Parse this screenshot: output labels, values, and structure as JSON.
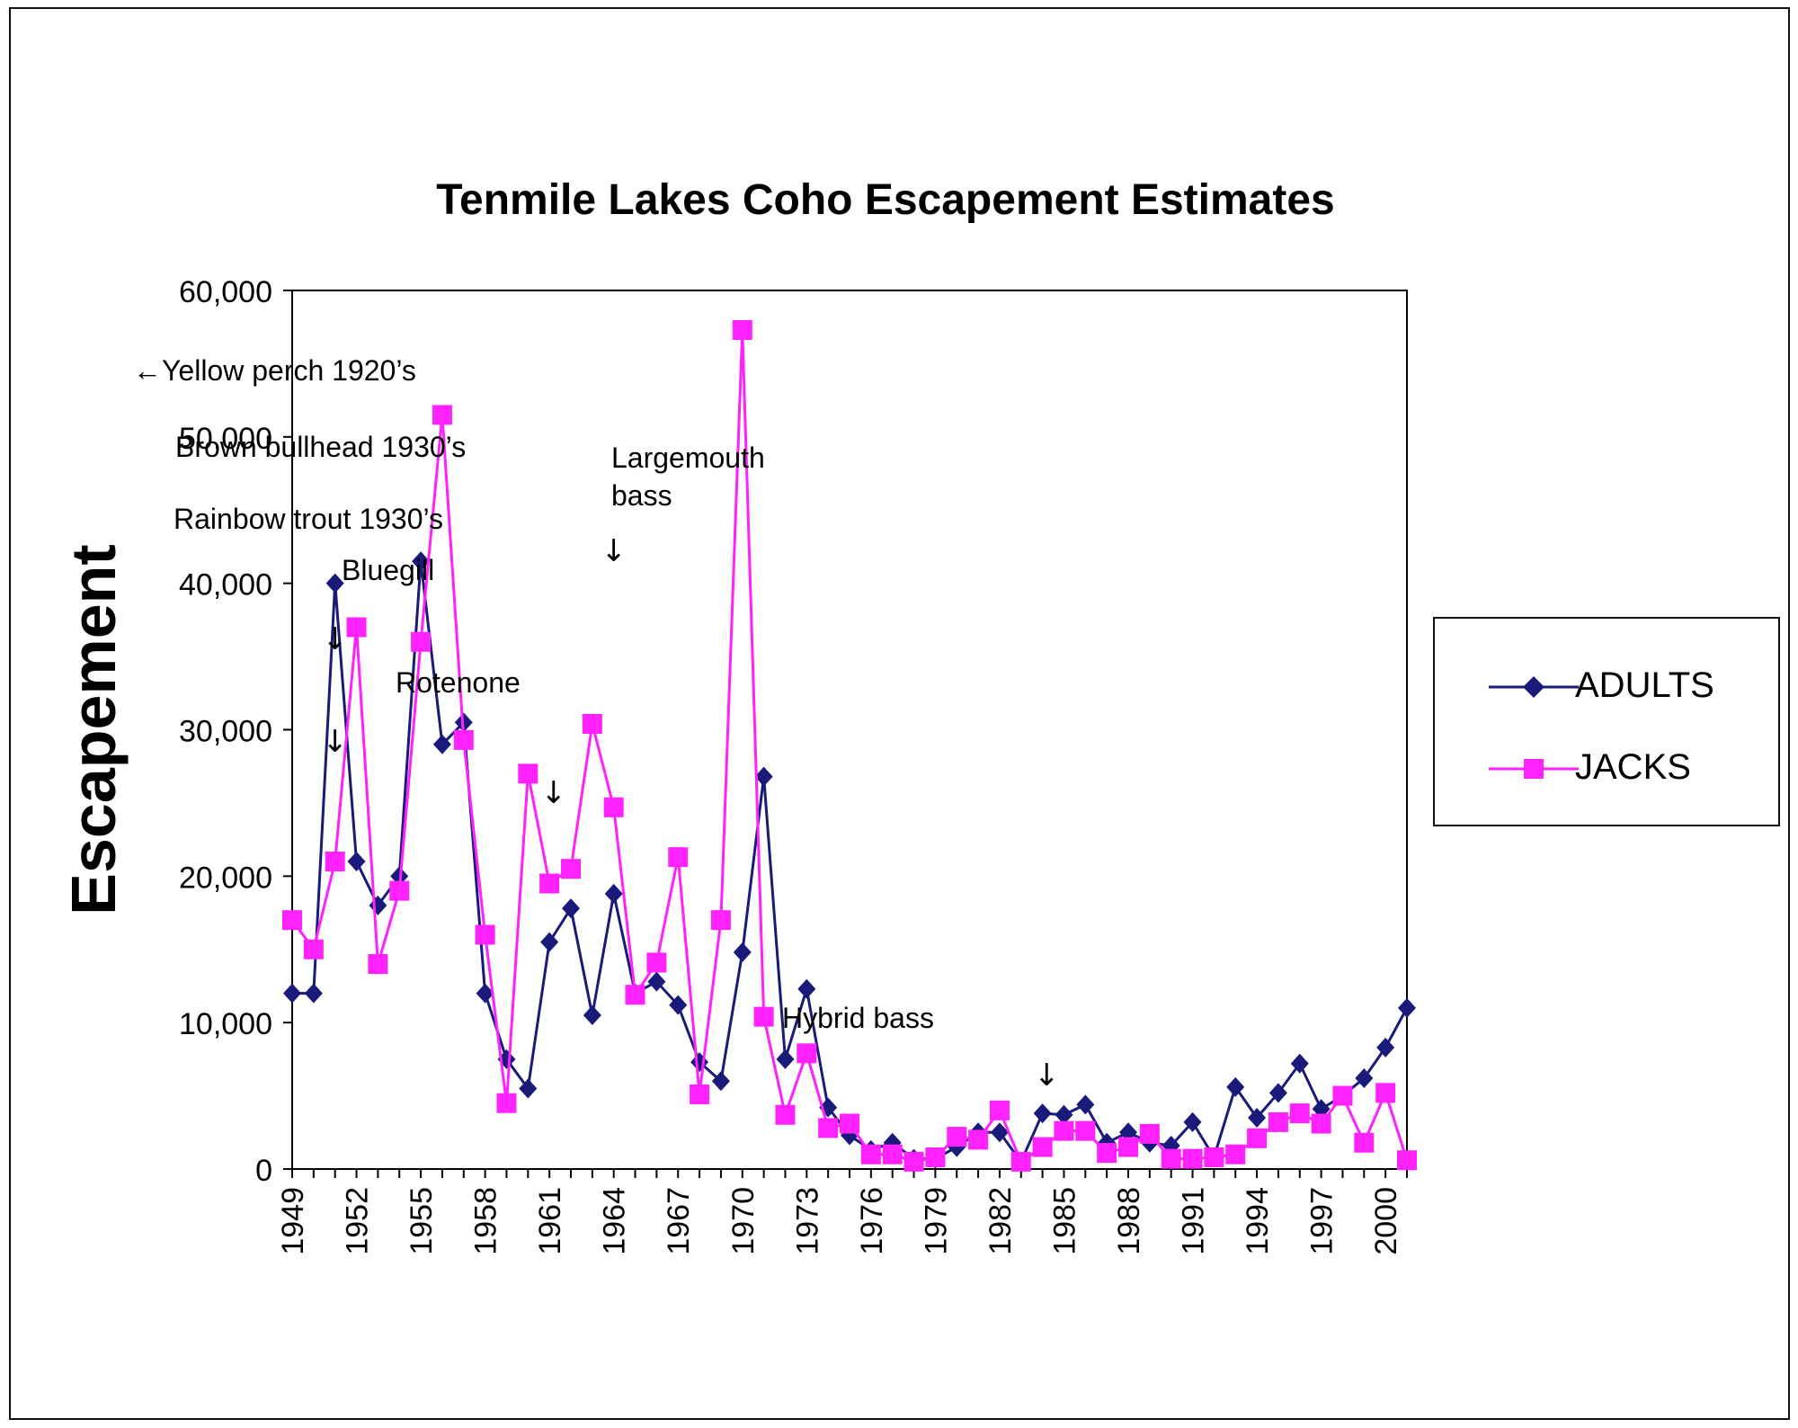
{
  "chart_data": {
    "type": "line",
    "title": "Tenmile Lakes Coho Escapement Estimates",
    "ylabel": "Escapement",
    "xlabel": "",
    "ylim": [
      0,
      60000
    ],
    "yticks": [
      0,
      10000,
      20000,
      30000,
      40000,
      50000,
      60000
    ],
    "ytick_labels": [
      "0",
      "10,000",
      "20,000",
      "30,000",
      "40,000",
      "50,000",
      "60,000"
    ],
    "xlim": [
      1949,
      2001
    ],
    "xtick_labels": [
      "1949",
      "1952",
      "1955",
      "1958",
      "1961",
      "1964",
      "1967",
      "1970",
      "1973",
      "1976",
      "1979",
      "1982",
      "1985",
      "1988",
      "1991",
      "1994",
      "1997",
      "2000"
    ],
    "x": [
      1949,
      1950,
      1951,
      1952,
      1953,
      1954,
      1955,
      1956,
      1957,
      1958,
      1959,
      1960,
      1961,
      1962,
      1963,
      1964,
      1965,
      1966,
      1967,
      1968,
      1969,
      1970,
      1971,
      1972,
      1973,
      1974,
      1975,
      1976,
      1977,
      1978,
      1979,
      1980,
      1981,
      1982,
      1983,
      1984,
      1985,
      1986,
      1987,
      1988,
      1989,
      1990,
      1991,
      1992,
      1993,
      1994,
      1995,
      1996,
      1997,
      1998,
      1999,
      2000,
      2001
    ],
    "series": [
      {
        "name": "ADULTS",
        "color": "#1a1a7a",
        "marker": "diamond",
        "values": [
          12000,
          12000,
          40000,
          21000,
          18000,
          20000,
          41500,
          29000,
          30500,
          12000,
          7500,
          5500,
          15500,
          17800,
          10500,
          18800,
          12000,
          12800,
          11200,
          7300,
          6000,
          14800,
          26800,
          7500,
          12300,
          4200,
          2300,
          1300,
          1800,
          700,
          700,
          1500,
          2500,
          2500,
          500,
          3800,
          3700,
          4400,
          1800,
          2500,
          1800,
          1600,
          3200,
          800,
          5600,
          3500,
          5200,
          7200,
          4100,
          5000,
          6200,
          8300,
          11000
        ]
      },
      {
        "name": "JACKS",
        "color": "#ff22ff",
        "marker": "square",
        "values": [
          17000,
          15000,
          21000,
          37000,
          14000,
          19000,
          36000,
          51500,
          29300,
          16000,
          4500,
          27000,
          19500,
          20500,
          30400,
          24700,
          11900,
          14100,
          21300,
          5100,
          17000,
          57300,
          10400,
          3700,
          7900,
          2800,
          3100,
          1000,
          1000,
          500,
          800,
          2200,
          2000,
          4000,
          500,
          1500,
          2600,
          2600,
          1100,
          1500,
          2400,
          700,
          700,
          800,
          1000,
          2100,
          3200,
          3800,
          3100,
          5000,
          1800,
          5200,
          600
        ]
      }
    ],
    "legend": {
      "position": "right",
      "items": [
        "ADULTS",
        "JACKS"
      ]
    },
    "annotations": [
      {
        "text": "←Yellow perch 1920’s"
      },
      {
        "text": "Brown bullhead 1930’s"
      },
      {
        "text": "Rainbow  trout 1930’s"
      },
      {
        "text": "Bluegill"
      },
      {
        "text": "Rotenone"
      },
      {
        "text": "Largemouth"
      },
      {
        "text": "bass"
      },
      {
        "text": "Hybrid bass"
      }
    ],
    "arrows": [
      {
        "text": "↓",
        "x": 1951,
        "y": 35500
      },
      {
        "text": "↓",
        "x": 1951,
        "y": 28500
      },
      {
        "text": "↓",
        "x": 1961.2,
        "y": 25000
      },
      {
        "text": "↓",
        "x": 1964,
        "y": 41500
      },
      {
        "text": "↓",
        "x": 1984.2,
        "y": 5700
      }
    ]
  }
}
